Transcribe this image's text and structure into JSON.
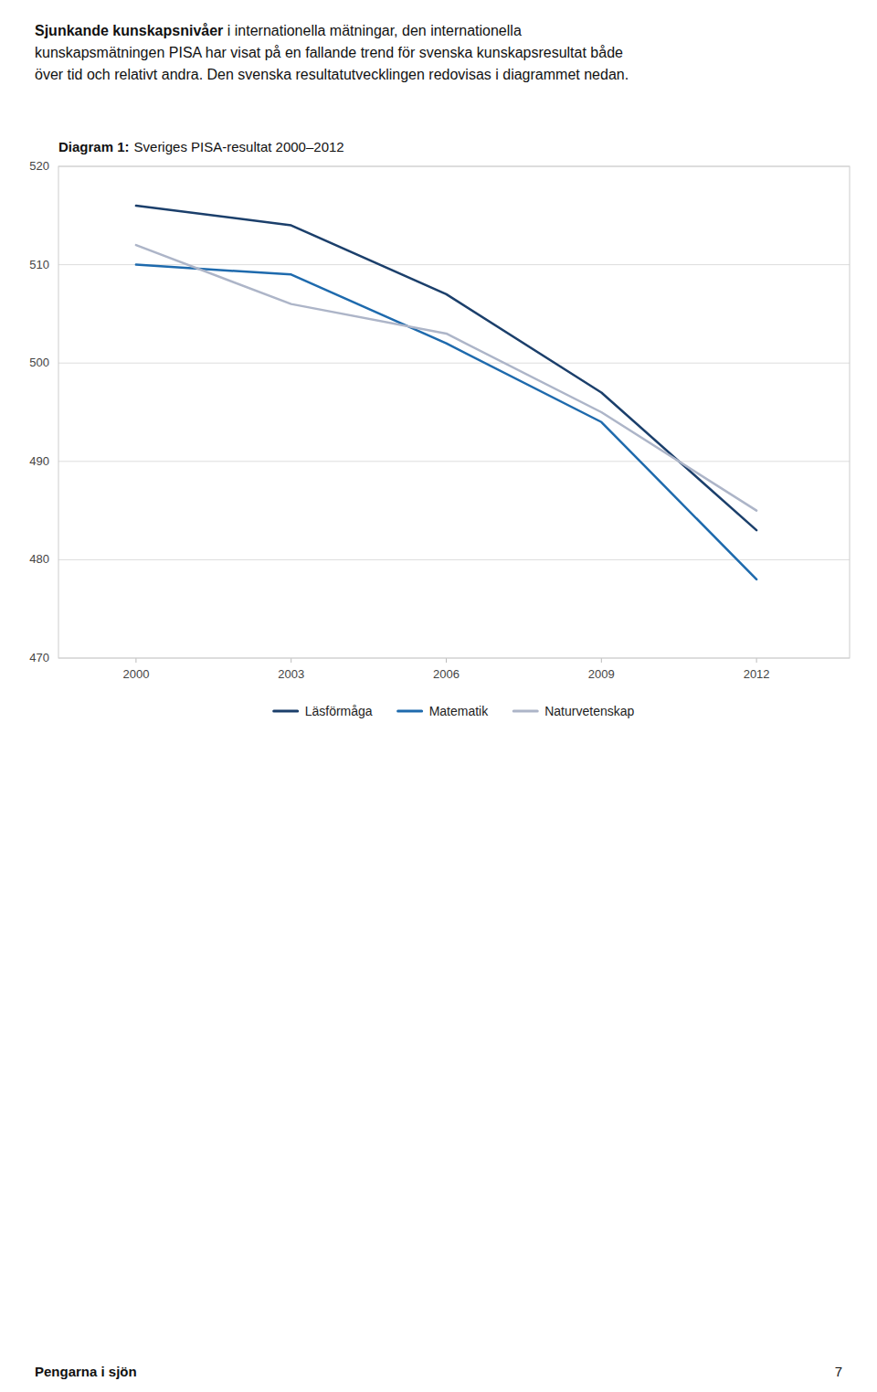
{
  "header": [
    {
      "bold": "Sjunkande kunskapsnivåer",
      "text": "i internationella mätningar, den internationella"
    },
    {
      "text": "kunskapsmätningen PISA har visat på en fallande trend för svenska kunskapsresultat både"
    },
    {
      "text": "över tid och relativt andra. Den svenska resultatutvecklingen redovisas i diagrammet nedan."
    }
  ],
  "footer": {
    "title": "Pengarna i sjön",
    "page": "7"
  },
  "chart_data": {
    "type": "line",
    "title": "Diagram 1:",
    "subtitle": "Sveriges PISA-resultat 2000–2012",
    "x": [
      2000,
      2003,
      2006,
      2009,
      2012
    ],
    "series": [
      {
        "name": "Läsförmåga",
        "color": "#1b3f6b",
        "values": [
          516,
          514,
          507,
          497,
          483
        ]
      },
      {
        "name": "Matematik",
        "color": "#1e6aad",
        "values": [
          510,
          509,
          502,
          494,
          478
        ]
      },
      {
        "name": "Naturvetenskap",
        "color": "#adb5c8",
        "values": [
          512,
          506,
          503,
          495,
          485
        ]
      }
    ],
    "xlim": [
      1998.5,
      2013.8
    ],
    "xticks": [
      2000,
      2003,
      2006,
      2009,
      2012
    ],
    "ylim": [
      470,
      520
    ],
    "yticks": [
      470,
      480,
      490,
      500,
      510,
      520
    ],
    "grid": true,
    "legend": "bottom"
  }
}
